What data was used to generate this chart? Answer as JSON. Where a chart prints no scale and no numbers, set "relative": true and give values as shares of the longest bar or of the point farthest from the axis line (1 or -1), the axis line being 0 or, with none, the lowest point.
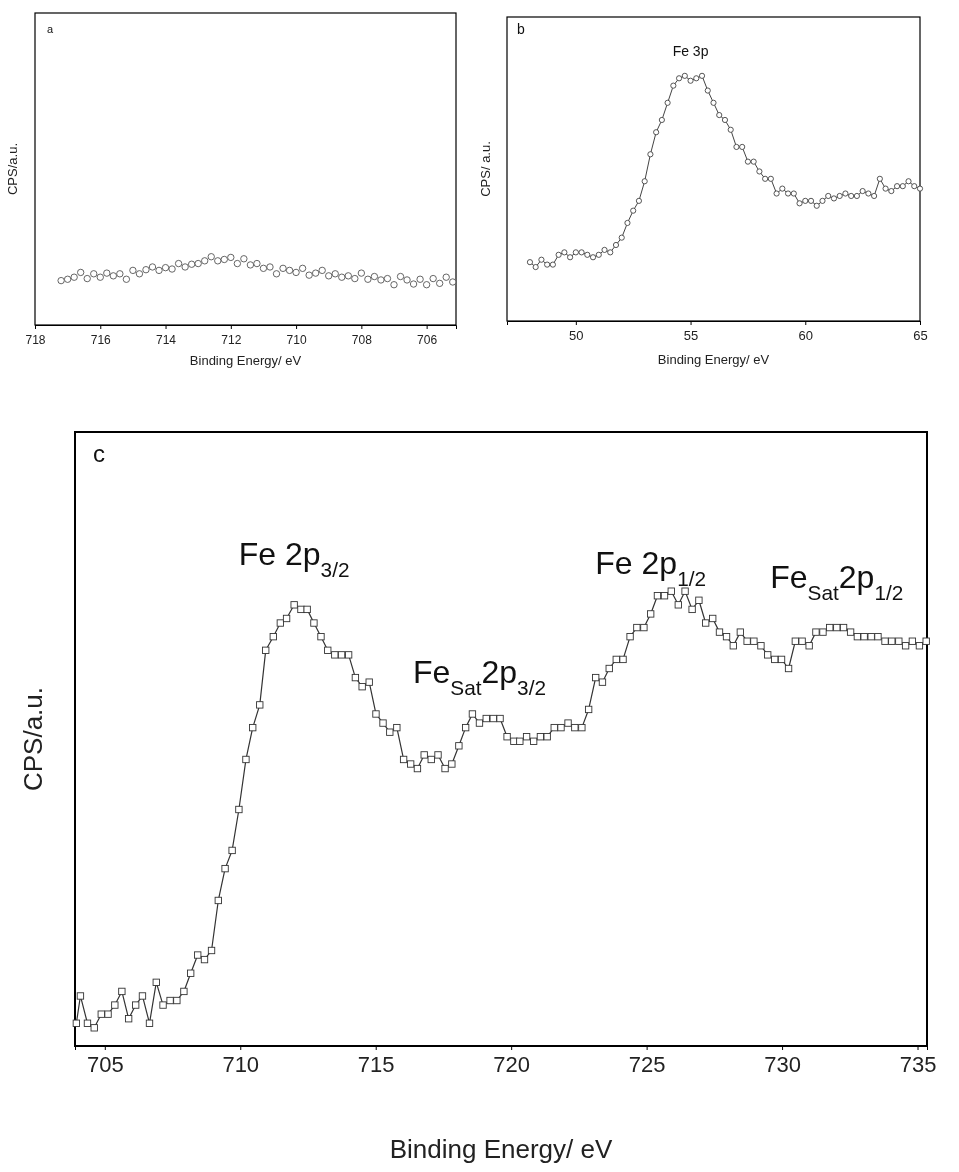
{
  "chart_data": [
    {
      "type": "scatter",
      "relative": true,
      "marker": "circle",
      "color": "#555555",
      "xlabel": "Binding Energy/ eV",
      "ylabel": "CPS/a.u.",
      "xlim": [
        718,
        705.1
      ],
      "xticks": [
        718,
        716,
        714,
        712,
        710,
        708,
        706
      ],
      "annotations": [
        "a"
      ],
      "x": [
        717.2,
        717.0,
        716.8,
        716.6,
        716.4,
        716.2,
        716.0,
        715.8,
        715.6,
        715.4,
        715.2,
        715.0,
        714.8,
        714.6,
        714.4,
        714.2,
        714.0,
        713.8,
        713.6,
        713.4,
        713.2,
        713.0,
        712.8,
        712.6,
        712.4,
        712.2,
        712.0,
        711.8,
        711.6,
        711.4,
        711.2,
        711.0,
        710.8,
        710.6,
        710.4,
        710.2,
        710.0,
        709.8,
        709.6,
        709.4,
        709.2,
        709.0,
        708.8,
        708.6,
        708.4,
        708.2,
        708.0,
        707.8,
        707.6,
        707.4,
        707.2,
        707.0,
        706.8,
        706.6,
        706.4,
        706.2,
        706.0,
        705.8,
        705.6,
        705.4,
        705.2
      ],
      "values": [
        0.65,
        0.67,
        0.7,
        0.77,
        0.68,
        0.75,
        0.7,
        0.76,
        0.72,
        0.75,
        0.67,
        0.8,
        0.75,
        0.81,
        0.85,
        0.8,
        0.84,
        0.82,
        0.9,
        0.85,
        0.89,
        0.9,
        0.94,
        1,
        0.94,
        0.96,
        0.99,
        0.9,
        0.97,
        0.88,
        0.9,
        0.83,
        0.85,
        0.75,
        0.83,
        0.8,
        0.77,
        0.83,
        0.73,
        0.76,
        0.8,
        0.72,
        0.75,
        0.7,
        0.72,
        0.68,
        0.76,
        0.67,
        0.71,
        0.66,
        0.68,
        0.59,
        0.71,
        0.66,
        0.6,
        0.67,
        0.59,
        0.68,
        0.61,
        0.7,
        0.63
      ]
    },
    {
      "type": "line",
      "relative": true,
      "marker": "circle",
      "line_style": "solid",
      "color": "#444444",
      "xlabel": "Binding Energy/ eV",
      "ylabel": "CPS/ a.u.",
      "xlim": [
        47,
        65
      ],
      "xticks": [
        50,
        55,
        60,
        65
      ],
      "annotations": [
        "b",
        {
          "text": "Fe 3p",
          "x": 55.0,
          "y": 0.99
        }
      ],
      "x": [
        48,
        48.25,
        48.5,
        48.75,
        49,
        49.25,
        49.5,
        49.75,
        50,
        50.25,
        50.5,
        50.75,
        51,
        51.25,
        51.5,
        51.75,
        52,
        52.25,
        52.5,
        52.75,
        53,
        53.25,
        53.5,
        53.75,
        54,
        54.25,
        54.5,
        54.75,
        55,
        55.25,
        55.5,
        55.75,
        56,
        56.25,
        56.5,
        56.75,
        57,
        57.25,
        57.5,
        57.75,
        58,
        58.25,
        58.5,
        58.75,
        59,
        59.25,
        59.5,
        59.75,
        60,
        60.25,
        60.5,
        60.75,
        61,
        61.25,
        61.5,
        61.75,
        62,
        62.25,
        62.5,
        62.75,
        63,
        63.25,
        63.5,
        63.75,
        64,
        64.25,
        64.5,
        64.75,
        65
      ],
      "values": [
        0.24,
        0.22,
        0.25,
        0.23,
        0.23,
        0.27,
        0.28,
        0.26,
        0.28,
        0.28,
        0.27,
        0.26,
        0.27,
        0.29,
        0.28,
        0.31,
        0.34,
        0.4,
        0.45,
        0.49,
        0.57,
        0.68,
        0.77,
        0.82,
        0.89,
        0.96,
        0.99,
        1.0,
        0.98,
        0.99,
        1,
        0.94,
        0.89,
        0.84,
        0.82,
        0.78,
        0.71,
        0.71,
        0.65,
        0.65,
        0.61,
        0.58,
        0.58,
        0.52,
        0.54,
        0.52,
        0.52,
        0.48,
        0.49,
        0.49,
        0.47,
        0.49,
        0.51,
        0.5,
        0.51,
        0.52,
        0.51,
        0.51,
        0.53,
        0.52,
        0.51,
        0.58,
        0.54,
        0.53,
        0.55,
        0.55,
        0.57,
        0.55,
        0.54
      ]
    },
    {
      "type": "line",
      "relative": true,
      "marker": "square",
      "line_style": "solid",
      "color": "#333333",
      "xlabel": "Binding Energy/ eV",
      "ylabel": "CPS/a.u.",
      "xlim": [
        703.9,
        735.35
      ],
      "xticks": [
        705,
        710,
        715,
        720,
        725,
        730,
        735
      ],
      "annotations": [
        "c",
        {
          "text": "Fe 2p$_{3/2}$",
          "x": 711.99,
          "y": 0.97
        },
        {
          "text": "Fe$_{Sat}$2p$_{3/2}$",
          "x": 718.83,
          "y": 0.71
        },
        {
          "text": "Fe 2p$_{1/2}$",
          "x": 725.15,
          "y": 0.95
        },
        {
          "text": "Fe$_{Sat}$2p$_{1/2}$",
          "x": 732.02,
          "y": 0.92
        }
      ],
      "x": [
        703.95,
        704.1,
        704.36,
        704.61,
        704.87,
        705.12,
        705.37,
        705.63,
        705.88,
        706.14,
        706.39,
        706.65,
        706.9,
        707.15,
        707.41,
        707.66,
        707.92,
        708.17,
        708.43,
        708.68,
        708.94,
        709.19,
        709.44,
        709.7,
        709.95,
        710.21,
        710.46,
        710.72,
        710.94,
        711.22,
        711.48,
        711.71,
        711.99,
        712.24,
        712.47,
        712.72,
        712.98,
        713.23,
        713.49,
        713.74,
        714.0,
        714.25,
        714.5,
        714.76,
        715.01,
        715.27,
        715.52,
        715.78,
        716.03,
        716.29,
        716.54,
        716.79,
        717.05,
        717.3,
        717.56,
        717.81,
        718.07,
        718.32,
        718.57,
        718.83,
        719.08,
        719.34,
        719.59,
        719.85,
        720.1,
        720.32,
        720.57,
        720.83,
        721.08,
        721.33,
        721.59,
        721.84,
        722.1,
        722.35,
        722.61,
        722.86,
        723.12,
        723.37,
        723.62,
        723.88,
        724.13,
        724.39,
        724.64,
        724.9,
        725.15,
        725.4,
        725.66,
        725.91,
        726.17,
        726.42,
        726.68,
        726.93,
        727.18,
        727.44,
        727.69,
        727.95,
        728.2,
        728.46,
        728.71,
        728.96,
        729.22,
        729.47,
        729.73,
        729.98,
        730.24,
        730.49,
        730.74,
        731.0,
        731.25,
        731.51,
        731.76,
        732.02,
        732.27,
        732.53,
        732.78,
        733.03,
        733.29,
        733.54,
        733.8,
        734.05,
        734.31,
        734.56,
        734.81,
        735.07,
        735.32
      ],
      "values": [
        0.05,
        0.11,
        0.05,
        0.04,
        0.07,
        0.07,
        0.09,
        0.12,
        0.06,
        0.09,
        0.11,
        0.05,
        0.14,
        0.09,
        0.1,
        0.1,
        0.12,
        0.16,
        0.2,
        0.19,
        0.21,
        0.32,
        0.39,
        0.43,
        0.52,
        0.63,
        0.7,
        0.75,
        0.87,
        0.9,
        0.93,
        0.94,
        0.97,
        0.96,
        0.96,
        0.93,
        0.9,
        0.87,
        0.86,
        0.86,
        0.86,
        0.81,
        0.79,
        0.8,
        0.73,
        0.71,
        0.69,
        0.7,
        0.63,
        0.62,
        0.61,
        0.64,
        0.63,
        0.64,
        0.61,
        0.62,
        0.66,
        0.7,
        0.73,
        0.71,
        0.72,
        0.72,
        0.72,
        0.68,
        0.67,
        0.67,
        0.68,
        0.67,
        0.68,
        0.68,
        0.7,
        0.7,
        0.71,
        0.7,
        0.7,
        0.74,
        0.81,
        0.8,
        0.83,
        0.85,
        0.85,
        0.9,
        0.92,
        0.92,
        0.95,
        0.99,
        0.99,
        1,
        0.97,
        1.0,
        0.96,
        0.98,
        0.93,
        0.94,
        0.91,
        0.9,
        0.88,
        0.91,
        0.89,
        0.89,
        0.88,
        0.86,
        0.85,
        0.85,
        0.83,
        0.89,
        0.89,
        0.88,
        0.91,
        0.91,
        0.92,
        0.92,
        0.92,
        0.91,
        0.9,
        0.9,
        0.9,
        0.9,
        0.89,
        0.89,
        0.89,
        0.88,
        0.89,
        0.88,
        0.89
      ]
    }
  ]
}
